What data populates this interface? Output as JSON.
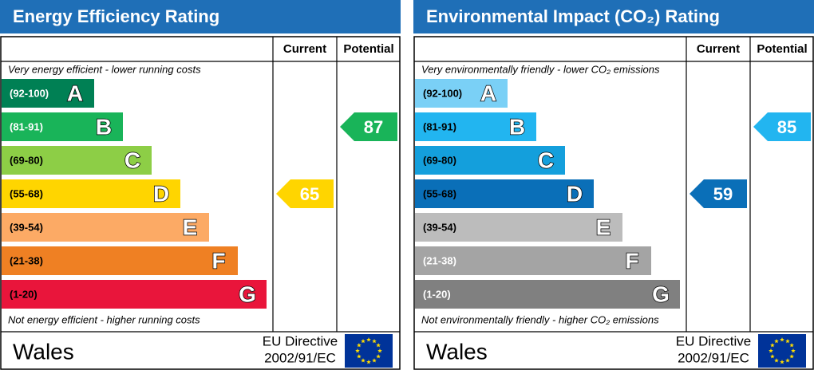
{
  "panels": [
    {
      "title": "Energy Efficiency Rating",
      "columns": [
        "Current",
        "Potential"
      ],
      "top_note": "Very energy efficient - lower running costs",
      "bottom_note": "Not energy efficient - higher running costs",
      "bands": [
        {
          "range": "(92-100)",
          "letter": "A",
          "color": "#008054",
          "text_color": "#ffffff"
        },
        {
          "range": "(81-91)",
          "letter": "B",
          "color": "#19b459",
          "text_color": "#ffffff"
        },
        {
          "range": "(69-80)",
          "letter": "C",
          "color": "#8dce46",
          "text_color": "#000000"
        },
        {
          "range": "(55-68)",
          "letter": "D",
          "color": "#ffd500",
          "text_color": "#000000"
        },
        {
          "range": "(39-54)",
          "letter": "E",
          "color": "#fcaa65",
          "text_color": "#000000"
        },
        {
          "range": "(21-38)",
          "letter": "F",
          "color": "#ef8023",
          "text_color": "#000000"
        },
        {
          "range": "(1-20)",
          "letter": "G",
          "color": "#e9153b",
          "text_color": "#000000"
        }
      ],
      "current": 65,
      "potential": 87,
      "region": "Wales",
      "directive": [
        "EU Directive",
        "2002/91/EC"
      ]
    },
    {
      "title": "Environmental Impact (CO₂) Rating",
      "columns": [
        "Current",
        "Potential"
      ],
      "top_note": "Very environmentally friendly - lower CO₂ emissions",
      "bottom_note": "Not environmentally friendly - higher CO₂ emissions",
      "bands": [
        {
          "range": "(92-100)",
          "letter": "A",
          "color": "#7ad0f6",
          "text_color": "#000000"
        },
        {
          "range": "(81-91)",
          "letter": "B",
          "color": "#22b5f0",
          "text_color": "#000000"
        },
        {
          "range": "(69-80)",
          "letter": "C",
          "color": "#149fdc",
          "text_color": "#000000"
        },
        {
          "range": "(55-68)",
          "letter": "D",
          "color": "#0a6fb8",
          "text_color": "#000000"
        },
        {
          "range": "(39-54)",
          "letter": "E",
          "color": "#bcbcbc",
          "text_color": "#000000"
        },
        {
          "range": "(21-38)",
          "letter": "F",
          "color": "#a4a4a4",
          "text_color": "#ffffff"
        },
        {
          "range": "(1-20)",
          "letter": "G",
          "color": "#808080",
          "text_color": "#ffffff"
        }
      ],
      "current": 59,
      "potential": 85,
      "region": "Wales",
      "directive": [
        "EU Directive",
        "2002/91/EC"
      ]
    }
  ]
}
